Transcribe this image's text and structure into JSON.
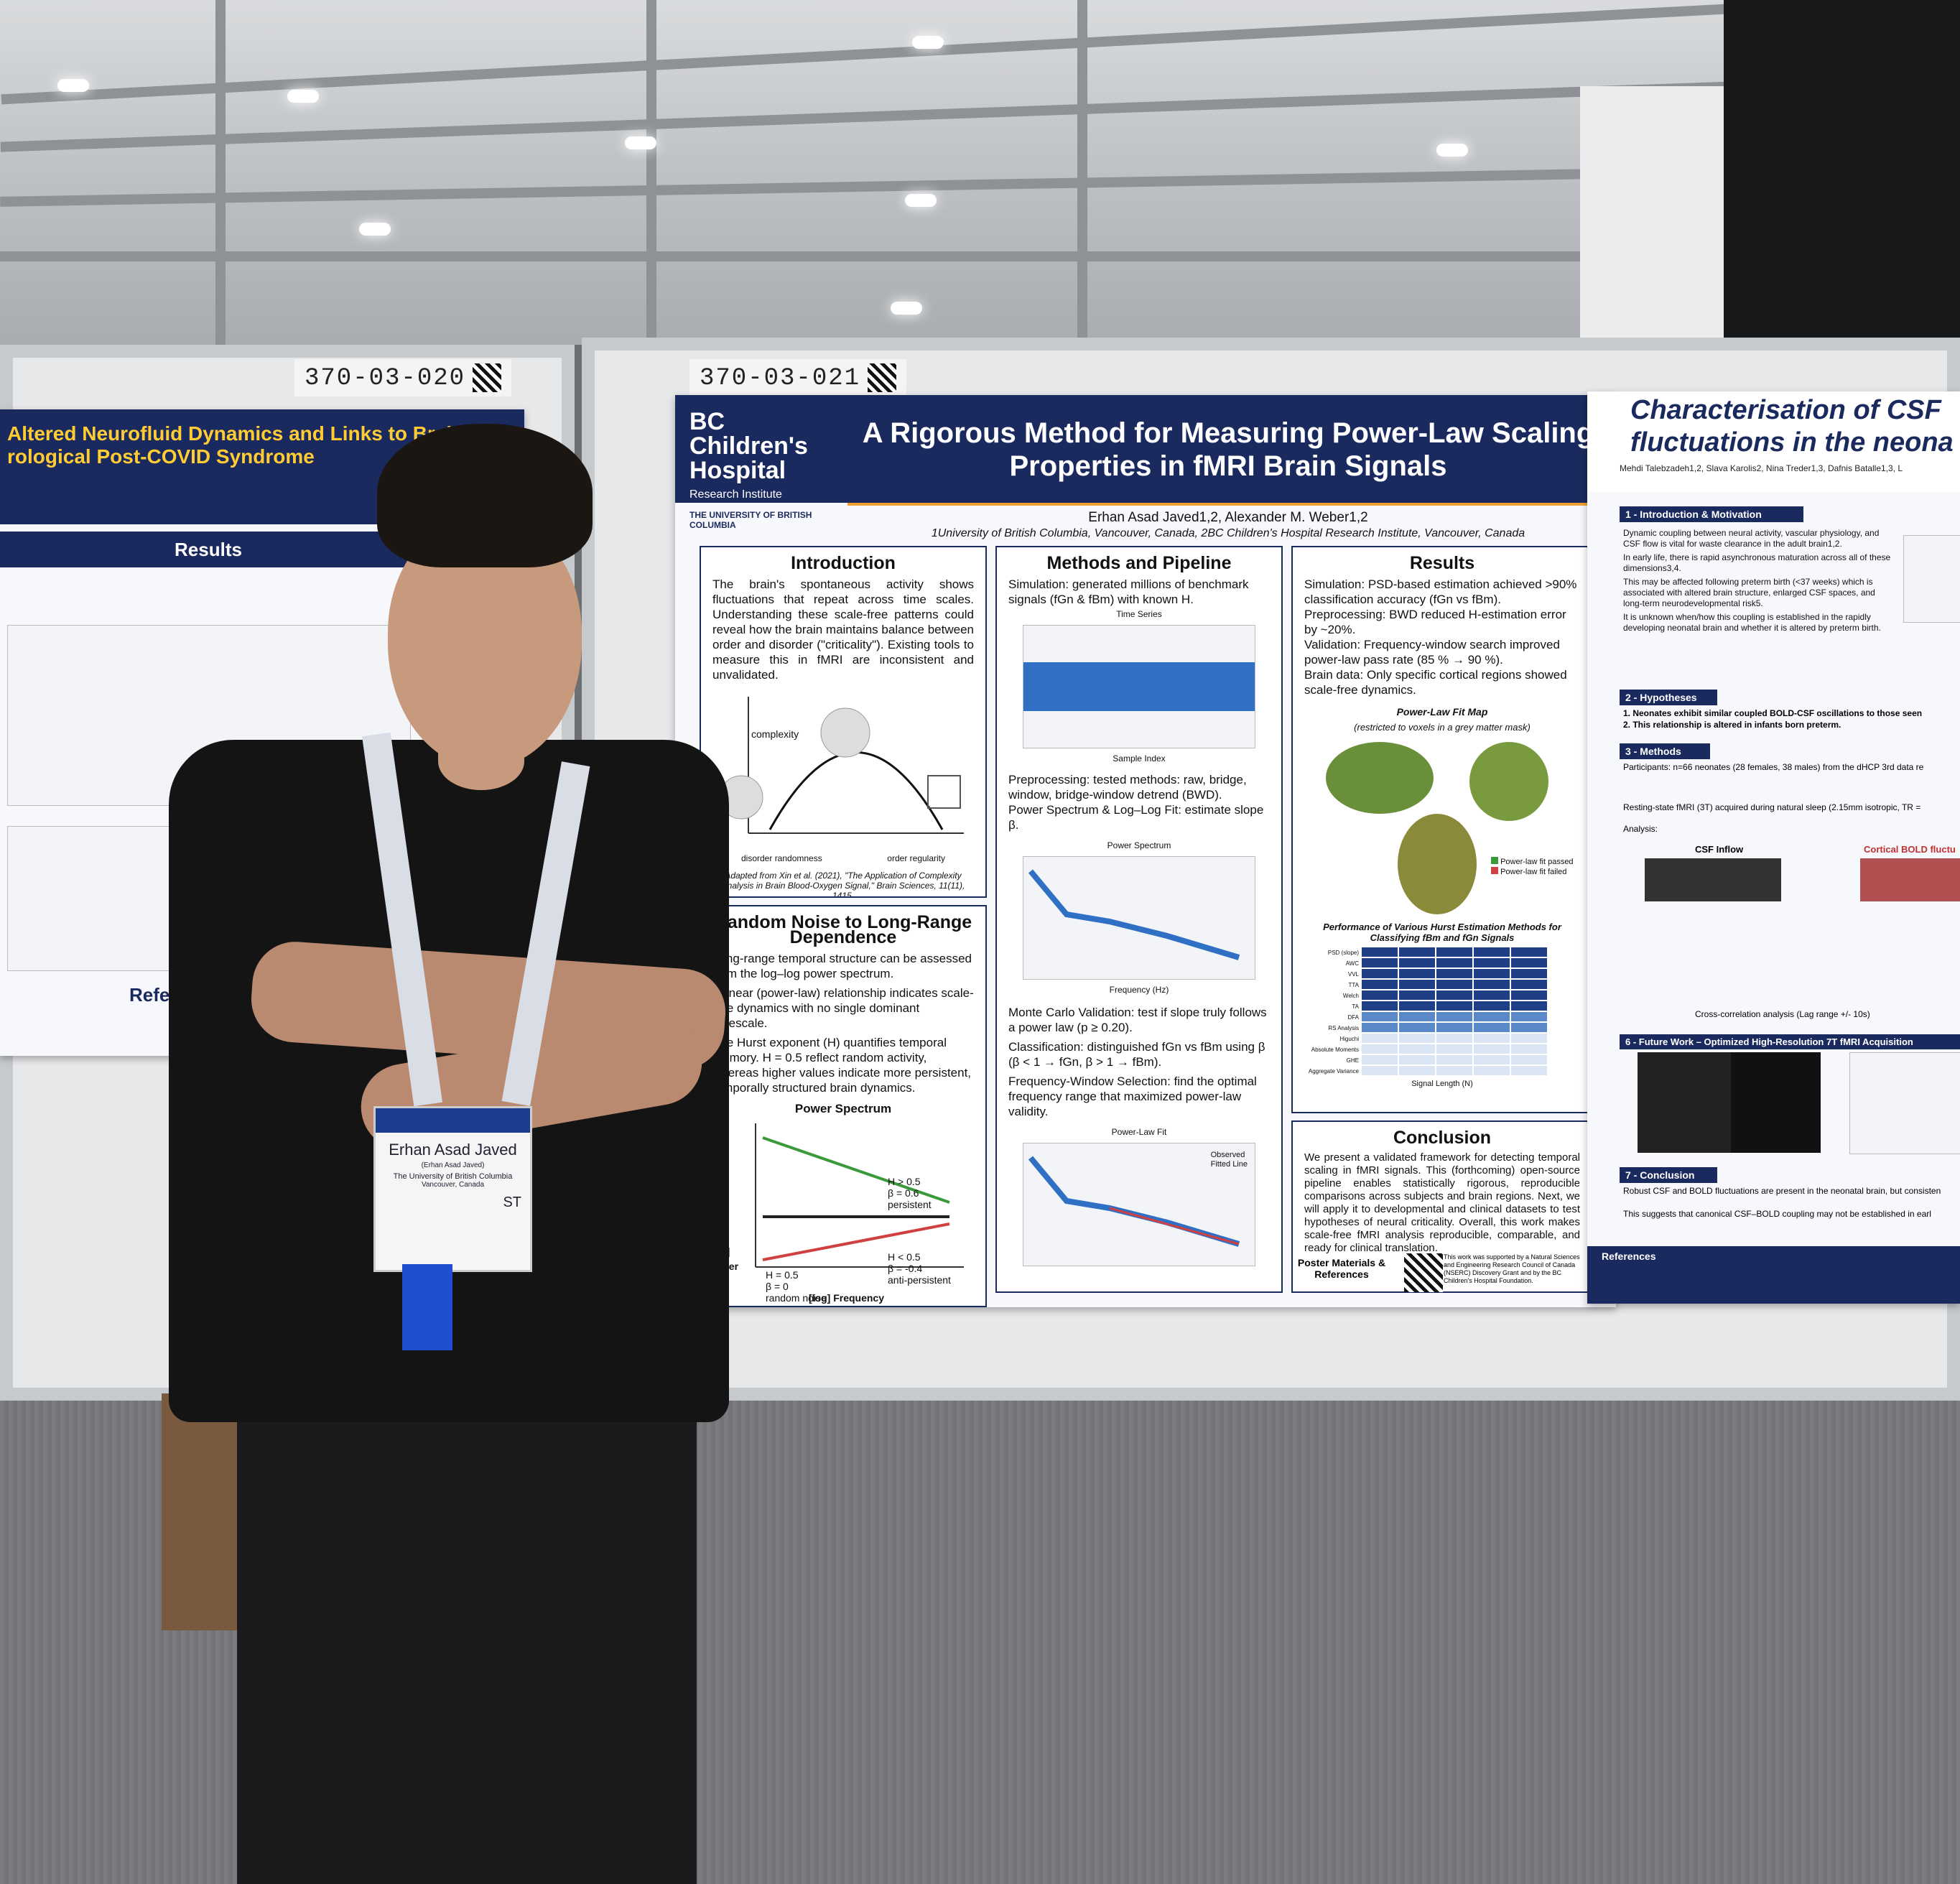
{
  "board_tags": {
    "left": "370-03-020",
    "center": "370-03-021"
  },
  "left_poster": {
    "title_line1": "Altered Neurofluid Dynamics and Links to Brain Fog",
    "title_line2": "rological Post-COVID Syndrome",
    "section": "Results",
    "references_label": "Refe"
  },
  "center_poster": {
    "institution_name": "BC Children's Hospital",
    "institution_sub": "Research Institute",
    "university": "THE UNIVERSITY OF BRITISH COLUMBIA",
    "title_line1": "A Rigorous Method for Measuring Power-Law Scaling",
    "title_line2": "Properties in fMRI Brain Signals",
    "authors": "Erhan Asad Javed1,2, Alexander M. Weber1,2",
    "affiliations": "1University of British Columbia, Vancouver, Canada, 2BC Children's Hospital Research Institute, Vancouver, Canada",
    "introduction": {
      "heading": "Introduction",
      "text": "The brain's spontaneous activity shows fluctuations that repeat across time scales. Understanding these scale-free patterns could reveal how the brain maintains balance between order and disorder (\"criticality\"). Existing tools to measure this in fMRI are inconsistent and unvalidated.",
      "figure_ylabel": "complexity",
      "figure_left": "disorder randomness",
      "figure_right": "order regularity",
      "caption": "Adapted from Xin et al. (2021), \"The Application of Complexity Analysis in Brain Blood-Oxygen Signal,\" Brain Sciences, 11(11), 1415."
    },
    "random_noise": {
      "heading": "Random Noise to Long-Range Dependence",
      "p1": "Long-range temporal structure can be assessed from the log–log power spectrum.",
      "p2": "A linear (power-law) relationship indicates scale-free dynamics with no single dominant timescale.",
      "p3": "The Hurst exponent (H) quantifies temporal memory. H = 0.5 reflect random activity, whereas higher values indicate more persistent, temporally structured brain dynamics.",
      "chart_title": "Power Spectrum",
      "ylabel": "[log] Power",
      "xlabel": "[log] Frequency",
      "persistent": "H > 0.5\nβ = 0.6\npersistent",
      "random": "H = 0.5\nβ = 0\nrandom noise",
      "anti": "H < 0.5\nβ = -0.4\nanti-persistent"
    },
    "methods": {
      "heading": "Methods and Pipeline",
      "simulation": "Simulation: generated millions of benchmark signals (fGn & fBm) with known H.",
      "ts_title": "Time Series",
      "ts_xlabel": "Sample Index",
      "preprocessing": "Preprocessing: tested methods: raw, bridge, window, bridge-window detrend (BWD).",
      "spectrum": "Power Spectrum & Log–Log Fit: estimate slope β.",
      "ps_title": "Power Spectrum",
      "ps_xlabel": "Frequency (Hz)",
      "monte_carlo": "Monte Carlo Validation: test if slope truly follows a power law (p ≥ 0.20).",
      "classification": "Classification: distinguished fGn vs fBm using β (β < 1 → fGn, β > 1 → fBm).",
      "window": "Frequency-Window Selection: find the optimal frequency range that maximized power-law validity.",
      "fit_title": "Power-Law Fit",
      "fit_legend1": "Observed",
      "fit_legend2": "Fitted Line"
    },
    "results": {
      "heading": "Results",
      "simulation": "Simulation: PSD-based estimation achieved >90% classification accuracy (fGn vs fBm).",
      "preprocessing": "Preprocessing: BWD reduced H-estimation error by ~20%.",
      "validation": "Validation: Frequency-window search improved power-law pass rate (85 % → 90 %).",
      "brain_data": "Brain data: Only specific cortical regions showed scale-free dynamics.",
      "map_title": "Power-Law Fit Map",
      "map_sub": "(restricted to voxels in a grey matter mask)",
      "legend_pass": "Power-law fit passed",
      "legend_fail": "Power-law fit failed",
      "table_title": "Performance of Various Hurst Estimation Methods for Classifying fBm and fGn Signals",
      "methods_list": [
        "PSD (slope)",
        "AWC",
        "VVL",
        "TTA",
        "Welch",
        "TA",
        "DFA",
        "RS Analysis",
        "Higuchi",
        "Absolute Moments",
        "GHE",
        "Aggregate Variance"
      ],
      "xlabel": "Signal Length (N)"
    },
    "conclusion": {
      "heading": "Conclusion",
      "text": "We present a validated framework for detecting temporal scaling in fMRI signals. This (forthcoming) open-source pipeline enables statistically rigorous, reproducible comparisons across subjects and brain regions. Next, we will apply it to developmental and clinical datasets to test hypotheses of neural criticality. Overall, this work makes scale-free fMRI analysis reproducible, comparable, and ready for clinical translation.",
      "materials": "Poster Materials & References",
      "funding": "This work was supported by a Natural Sciences and Engineering Research Council of Canada (NSERC) Discovery Grant and by the BC Children's Hospital Foundation."
    }
  },
  "right_poster": {
    "title_line1": "Characterisation of CSF",
    "title_line2": "fluctuations in the neona",
    "authors": "Mehdi Talebzadeh1,2, Slava Karolis2, Nina Treder1,3, Dafnis Batalle1,3, L",
    "s1": "1 - Introduction & Motivation",
    "s1_b1": "Dynamic coupling between neural activity, vascular physiology, and CSF flow is vital for waste clearance in the adult brain1,2.",
    "s1_b2": "In early life, there is rapid asynchronous maturation across all of these dimensions3,4.",
    "s1_b3": "This may be affected following preterm birth (<37 weeks) which is associated with altered brain structure, enlarged CSF spaces, and long-term neurodevelopmental risk5.",
    "s1_b4": "It is unknown when/how this coupling is established in the rapidly developing neonatal brain and whether it is altered by preterm birth.",
    "s2": "2 - Hypotheses",
    "s2_b1": "1. Neonates exhibit similar coupled BOLD-CSF oscillations to those seen",
    "s2_b2": "2. This relationship is altered in infants born preterm.",
    "s3": "3 - Methods",
    "s3_b1": "Participants: n=66 neonates (28 females, 38 males) from the dHCP 3rd data re",
    "s3_b2": "Resting-state fMRI (3T) acquired during natural sleep (2.15mm isotropic, TR =",
    "s3_analysis": "Analysis:",
    "csf_inflow": "CSF Inflow",
    "cortical_bold": "Cortical BOLD fluctu",
    "cross_corr": "Cross-correlation analysis (Lag range +/- 10s)",
    "s6": "6 - Future Work – Optimized High-Resolution 7T fMRI Acquisition",
    "s7": "7 - Conclusion",
    "s7_b1": "Robust CSF and BOLD fluctuations are present in the neonatal brain, but consisten",
    "s7_b2": "This suggests that canonical CSF–BOLD coupling may not be established in earl",
    "references": "References"
  },
  "badge": {
    "name": "Erhan Asad Javed",
    "sub": "(Erhan Asad Javed)",
    "org": "The University of British Columbia",
    "city": "Vancouver, Canada",
    "code": "ST"
  },
  "colors": {
    "navy": "#1b2a5e",
    "accent": "#f0a030",
    "signal": "#2f6fc4"
  }
}
